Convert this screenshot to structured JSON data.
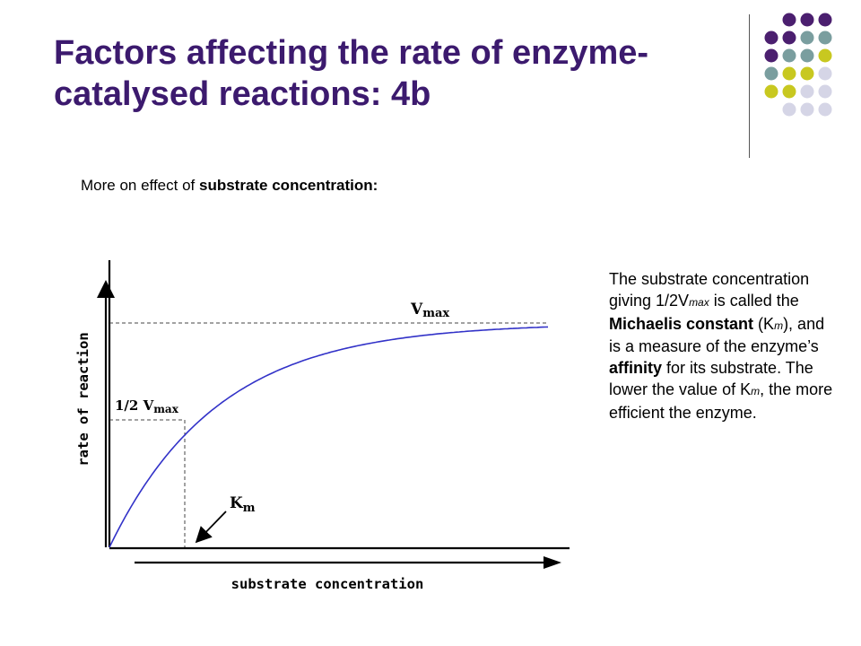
{
  "slide": {
    "title": "Factors affecting the rate of enzyme-catalysed reactions: 4b",
    "subtitle_plain": "More on effect of ",
    "subtitle_bold": "substrate concentration:"
  },
  "description": {
    "t1": "The substrate concentration giving 1/2V",
    "max_sub": "max",
    "t2": " is called the ",
    "bold1": "Michaelis constant",
    "t3": " (K",
    "m_sub1": "m",
    "t4": "), and is a measure of the enzyme’s ",
    "bold2": "affinity",
    "t5": " for its substrate. The lower the value of K",
    "m_sub2": "m",
    "t6": ", the more efficient the enzyme."
  },
  "graph": {
    "ylabel": "rate of reaction",
    "xlabel": "substrate concentration",
    "vmax_v": "V",
    "vmax_sub": "max",
    "half_prefix": "1/2 V",
    "half_sub": "max",
    "km_k": "K",
    "km_sub": "m",
    "curve_color": "#3232c8"
  },
  "colors": {
    "title": "#3c1a6e",
    "dot_purple": "#4b1f6f",
    "dot_teal": "#7a9e9f",
    "dot_yellow": "#c8c820",
    "dot_lavender": "#d5d5e6"
  }
}
